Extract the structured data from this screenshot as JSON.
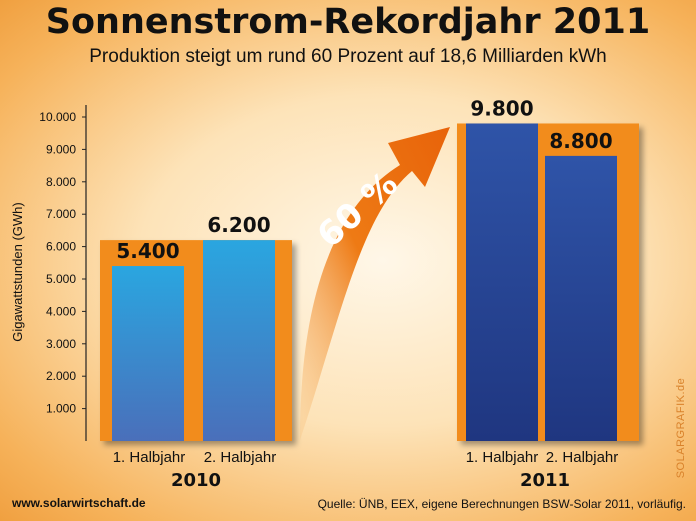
{
  "title": "Sonnenstrom-Rekordjahr 2011",
  "subtitle": "Produktion steigt um rund 60 Prozent auf 18,6 Milliarden kWh",
  "footer": {
    "website": "www.solarwirtschaft.de",
    "source": "Quelle: ÜNB, EEX, eigene Berechnungen BSW-Solar 2011, vorläufig.",
    "watermark": "SOLARGRAFIK.de"
  },
  "growth_label": "60 %",
  "colors": {
    "panel": "#f28c1e",
    "bar_2010_top": "#2aa6e0",
    "bar_2010_bottom": "#4a6fba",
    "bar_2011_top": "#2f54a8",
    "bar_2011_bottom": "#1f3680",
    "arrow": "#ee7a14"
  },
  "chart_data": {
    "type": "bar",
    "title": "Sonnenstrom-Rekordjahr 2011",
    "subtitle": "Produktion steigt um rund 60 Prozent auf 18,6 Milliarden kWh",
    "ylabel": "Gigawattstunden (GWh)",
    "ylim": [
      0,
      10000
    ],
    "yticks": [
      "1.000",
      "2.000",
      "3.000",
      "4.000",
      "5.000",
      "6.000",
      "7.000",
      "8.000",
      "9.000",
      "10.000"
    ],
    "groups": [
      {
        "name": "2010",
        "categories": [
          "1. Halbjahr",
          "2. Halbjahr"
        ],
        "values": [
          5400,
          6200
        ],
        "value_labels": [
          "5.400",
          "6.200"
        ]
      },
      {
        "name": "2011",
        "categories": [
          "1. Halbjahr",
          "2. Halbjahr"
        ],
        "values": [
          9800,
          8800
        ],
        "value_labels": [
          "9.800",
          "8.800"
        ]
      }
    ]
  }
}
